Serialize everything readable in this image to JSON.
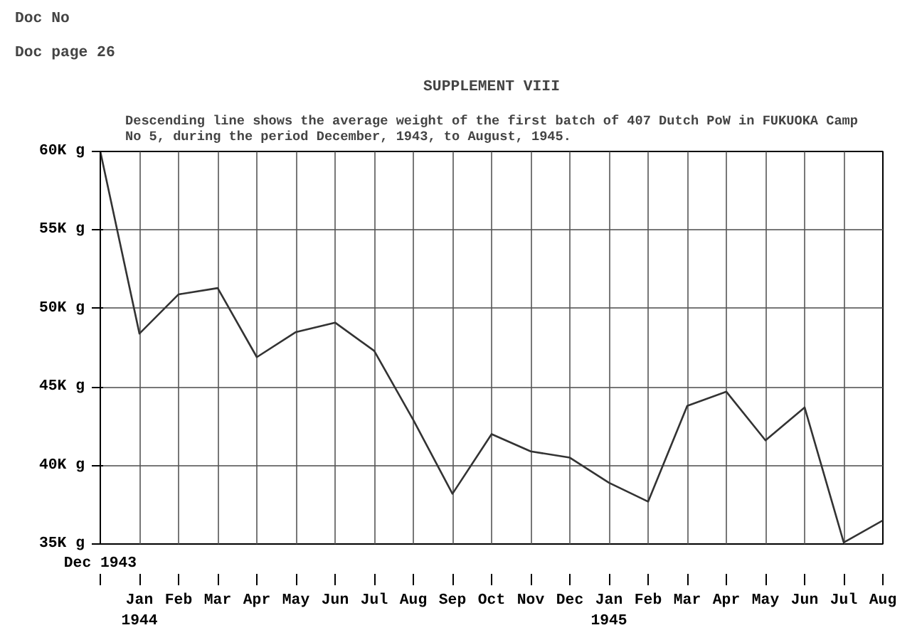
{
  "chart_data": {
    "type": "line",
    "title": "SUPPLEMENT VIII",
    "subtitle": "Descending line shows the average weight of the first batch of 407 Dutch PoW in FUKUOKA Camp\nNo 5, during the period December, 1943, to August, 1945.",
    "annotations": [
      "Doc No",
      "Doc page 26"
    ],
    "categories": [
      "Dec 1943",
      "Jan\n1944",
      "Feb",
      "Mar",
      "Apr",
      "May",
      "Jun",
      "Jul",
      "Aug",
      "Sep",
      "Oct",
      "Nov",
      "Dec",
      "Jan\n1945",
      "Feb",
      "Mar",
      "Apr",
      "May",
      "Jun",
      "Jul",
      "Aug"
    ],
    "series": [
      {
        "color": "#333333",
        "values": [
          60,
          48.4,
          50.9,
          51.3,
          46.9,
          48.5,
          49.1,
          47.3,
          42.9,
          38.2,
          42.0,
          40.9,
          40.5,
          38.9,
          37.7,
          43.8,
          44.7,
          41.6,
          43.7,
          35.1,
          36.5
        ]
      }
    ],
    "ylim": [
      35,
      60
    ],
    "yticks": [
      {
        "value": 35,
        "label": "35K g"
      },
      {
        "value": 40,
        "label": "40K g"
      },
      {
        "value": 45,
        "label": "45K g"
      },
      {
        "value": 50,
        "label": "50K g"
      },
      {
        "value": 55,
        "label": "55K g"
      },
      {
        "value": 60,
        "label": "60K g"
      }
    ],
    "grid": true,
    "line_style": "solid"
  }
}
